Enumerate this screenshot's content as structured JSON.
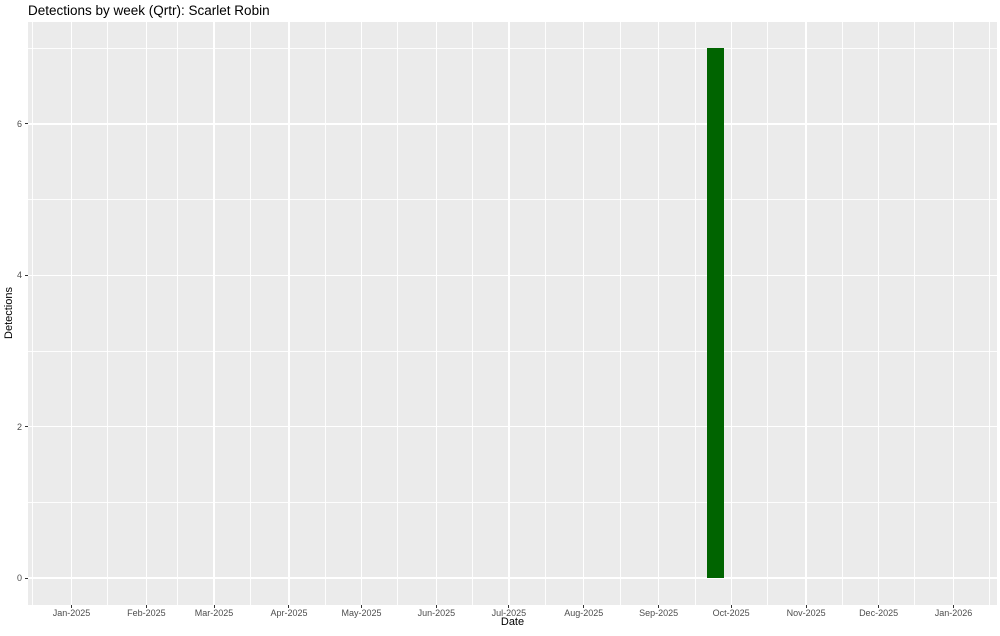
{
  "chart_data": {
    "type": "bar",
    "title": "Detections by week (Qrtr): Scarlet Robin",
    "xlabel": "Date",
    "ylabel": "Detections",
    "legend": "none",
    "grid": true,
    "x_axis": {
      "domain": [
        "2024-12-14",
        "2026-01-19"
      ],
      "tick_labels": [
        "Jan-2025",
        "Feb-2025",
        "Mar-2025",
        "Apr-2025",
        "May-2025",
        "Jun-2025",
        "Jul-2025",
        "Aug-2025",
        "Sep-2025",
        "Oct-2025",
        "Nov-2025",
        "Dec-2025",
        "Jan-2026"
      ],
      "tick_dates": [
        "2025-01-01",
        "2025-02-01",
        "2025-03-01",
        "2025-04-01",
        "2025-05-01",
        "2025-06-01",
        "2025-07-01",
        "2025-08-01",
        "2025-09-01",
        "2025-10-01",
        "2025-11-01",
        "2025-12-01",
        "2026-01-01"
      ],
      "minor_break_dates": [
        "2024-12-16",
        "2025-01-16",
        "2025-02-14",
        "2025-03-16",
        "2025-04-16",
        "2025-05-16",
        "2025-06-16",
        "2025-07-16",
        "2025-08-16",
        "2025-09-16",
        "2025-10-16",
        "2025-11-16",
        "2025-12-16",
        "2026-01-16"
      ]
    },
    "y_axis": {
      "ticks": [
        0,
        2,
        4,
        6
      ],
      "minor_ticks": [
        1,
        3,
        5,
        7
      ],
      "ylim": [
        0,
        7
      ]
    },
    "bars": [
      {
        "week_start": "2025-09-21",
        "week_end": "2025-09-28",
        "value": 7
      }
    ],
    "colors": {
      "bar_fill": "#006400",
      "panel_bg": "#EBEBEB",
      "grid": "#FFFFFF",
      "axis_text": "#4D4D4D",
      "tick_mark": "#333333",
      "title_text": "#000000"
    }
  }
}
